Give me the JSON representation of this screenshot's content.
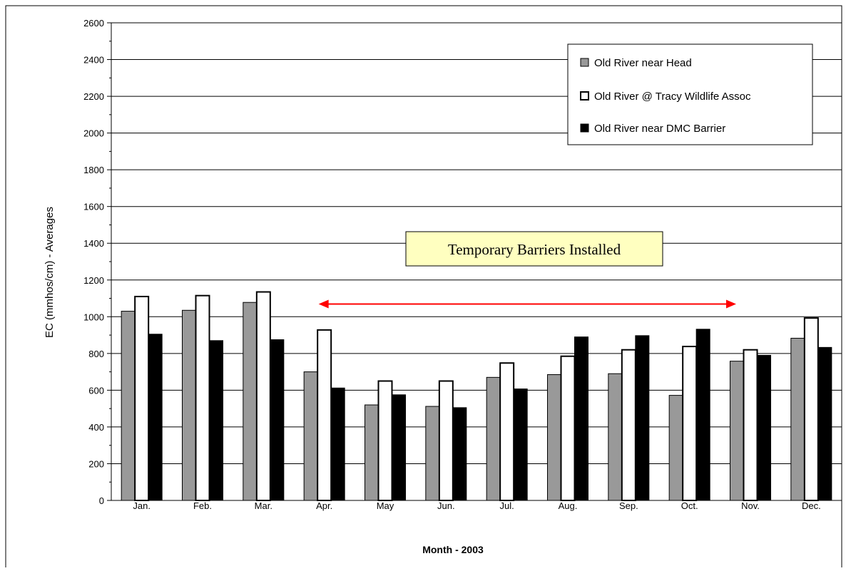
{
  "chart_data": {
    "type": "bar",
    "title": "",
    "xlabel": "Month - 2003",
    "ylabel": "EC (mmhos/cm) - Averages",
    "ylim": [
      0,
      2600
    ],
    "ytick_step": 200,
    "yticks": [
      "0",
      "200",
      "400",
      "600",
      "800",
      "1000",
      "1200",
      "1400",
      "1600",
      "1800",
      "2000",
      "2200",
      "2400",
      "2600"
    ],
    "grid": "horizontal",
    "legend_position": "top-right",
    "categories": [
      "Jan.",
      "Feb.",
      "Mar.",
      "Apr.",
      "May",
      "Jun.",
      "Jul.",
      "Aug.",
      "Sep.",
      "Oct.",
      "Nov.",
      "Dec."
    ],
    "series": [
      {
        "name": "Old River near Head",
        "color": "#999999",
        "values": [
          1030,
          1035,
          1078,
          700,
          520,
          512,
          670,
          685,
          690,
          572,
          758,
          883
        ]
      },
      {
        "name": "Old River @ Tracy Wildlife Assoc",
        "color": "#ffffff",
        "values": [
          1110,
          1115,
          1135,
          928,
          650,
          650,
          748,
          785,
          820,
          838,
          820,
          993
        ]
      },
      {
        "name": "Old River near DMC Barrier",
        "color": "#000000",
        "values": [
          905,
          870,
          875,
          612,
          575,
          505,
          607,
          890,
          897,
          932,
          790,
          833
        ]
      }
    ],
    "annotations": [
      {
        "text": "Temporary Barriers Installed",
        "box_fill": "#ffffc0",
        "arrow_color": "#ff0000",
        "arrow_from": "Apr.",
        "arrow_to": "Nov.",
        "arrow_y": 1100
      }
    ]
  }
}
